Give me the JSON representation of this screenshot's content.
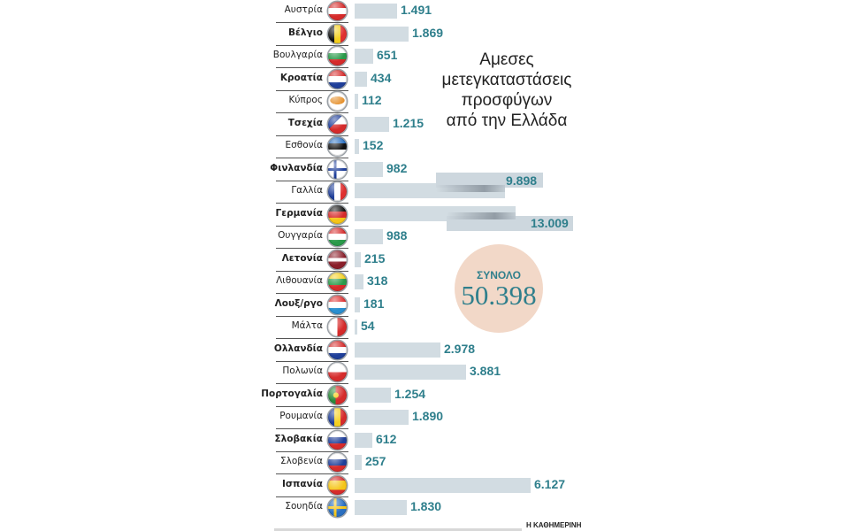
{
  "title": "Αμεσες μετεγκαταστάσεις προσφύγων από την Ελλάδα",
  "title_lines": [
    "Αμεσες",
    "μετεγκαταστάσεις",
    "προσφύγων",
    "από την Ελλάδα"
  ],
  "total": {
    "label": "ΣΥΝΟΛΟ",
    "value": "50.398"
  },
  "source": "Η ΚΑΘΗΜΕΡΙΝΗ",
  "colors": {
    "bar": "#d2dce2",
    "value_text": "#2f7f8c",
    "total_circle": "#f2d8c8"
  },
  "rows": [
    {
      "country": "Αυστρία",
      "bold": false,
      "value": "1.491",
      "flag": "austria-flag-icon"
    },
    {
      "country": "Βέλγιο",
      "bold": true,
      "value": "1.869",
      "flag": "belgium-flag-icon"
    },
    {
      "country": "Βουλγαρία",
      "bold": false,
      "value": "651",
      "flag": "bulgaria-flag-icon"
    },
    {
      "country": "Κροατία",
      "bold": true,
      "value": "434",
      "flag": "croatia-flag-icon"
    },
    {
      "country": "Κύπρος",
      "bold": false,
      "value": "112",
      "flag": "cyprus-flag-icon"
    },
    {
      "country": "Τσεχία",
      "bold": true,
      "value": "1.215",
      "flag": "czechia-flag-icon"
    },
    {
      "country": "Εσθονία",
      "bold": false,
      "value": "152",
      "flag": "estonia-flag-icon"
    },
    {
      "country": "Φινλανδία",
      "bold": true,
      "value": "982",
      "flag": "finland-flag-icon"
    },
    {
      "country": "Γαλλία",
      "bold": false,
      "value": "9.898",
      "flag": "france-flag-icon"
    },
    {
      "country": "Γερμανία",
      "bold": true,
      "value": "13.009",
      "flag": "germany-flag-icon"
    },
    {
      "country": "Ουγγαρία",
      "bold": false,
      "value": "988",
      "flag": "hungary-flag-icon"
    },
    {
      "country": "Λετονία",
      "bold": true,
      "value": "215",
      "flag": "latvia-flag-icon"
    },
    {
      "country": "Λιθουανία",
      "bold": false,
      "value": "318",
      "flag": "lithuania-flag-icon"
    },
    {
      "country": "Λουξ/ργο",
      "bold": true,
      "value": "181",
      "flag": "luxembourg-flag-icon"
    },
    {
      "country": "Μάλτα",
      "bold": false,
      "value": "54",
      "flag": "malta-flag-icon"
    },
    {
      "country": "Ολλανδία",
      "bold": true,
      "value": "2.978",
      "flag": "netherlands-flag-icon"
    },
    {
      "country": "Πολωνία",
      "bold": false,
      "value": "3.881",
      "flag": "poland-flag-icon"
    },
    {
      "country": "Πορτογαλία",
      "bold": true,
      "value": "1.254",
      "flag": "portugal-flag-icon"
    },
    {
      "country": "Ρουμανία",
      "bold": false,
      "value": "1.890",
      "flag": "romania-flag-icon"
    },
    {
      "country": "Σλοβακία",
      "bold": true,
      "value": "612",
      "flag": "slovakia-flag-icon"
    },
    {
      "country": "Σλοβενία",
      "bold": false,
      "value": "257",
      "flag": "slovenia-flag-icon"
    },
    {
      "country": "Ισπανία",
      "bold": true,
      "value": "6.127",
      "flag": "spain-flag-icon"
    },
    {
      "country": "Σουηδία",
      "bold": false,
      "value": "1.830",
      "flag": "sweden-flag-icon"
    }
  ],
  "chart_data": {
    "type": "bar",
    "orientation": "horizontal",
    "title": "Αμεσες μετεγκαταστάσεις προσφύγων από την Ελλάδα",
    "xlabel": "",
    "ylabel": "",
    "categories": [
      "Αυστρία",
      "Βέλγιο",
      "Βουλγαρία",
      "Κροατία",
      "Κύπρος",
      "Τσεχία",
      "Εσθονία",
      "Φινλανδία",
      "Γαλλία",
      "Γερμανία",
      "Ουγγαρία",
      "Λετονία",
      "Λιθουανία",
      "Λουξ/ργο",
      "Μάλτα",
      "Ολλανδία",
      "Πολωνία",
      "Πορτογαλία",
      "Ρουμανία",
      "Σλοβακία",
      "Σλοβενία",
      "Ισπανία",
      "Σουηδία"
    ],
    "values": [
      1491,
      1869,
      651,
      434,
      112,
      1215,
      152,
      982,
      9898,
      13009,
      988,
      215,
      318,
      181,
      54,
      2978,
      3881,
      1254,
      1890,
      612,
      257,
      6127,
      1830
    ],
    "annotations": [
      "ΣΥΝΟΛΟ 50.398"
    ],
    "total": 50398,
    "grid": false,
    "legend": null,
    "notes": "Bars for Γαλλία and Γερμανία are drawn with a broken-axis (split) effect."
  }
}
